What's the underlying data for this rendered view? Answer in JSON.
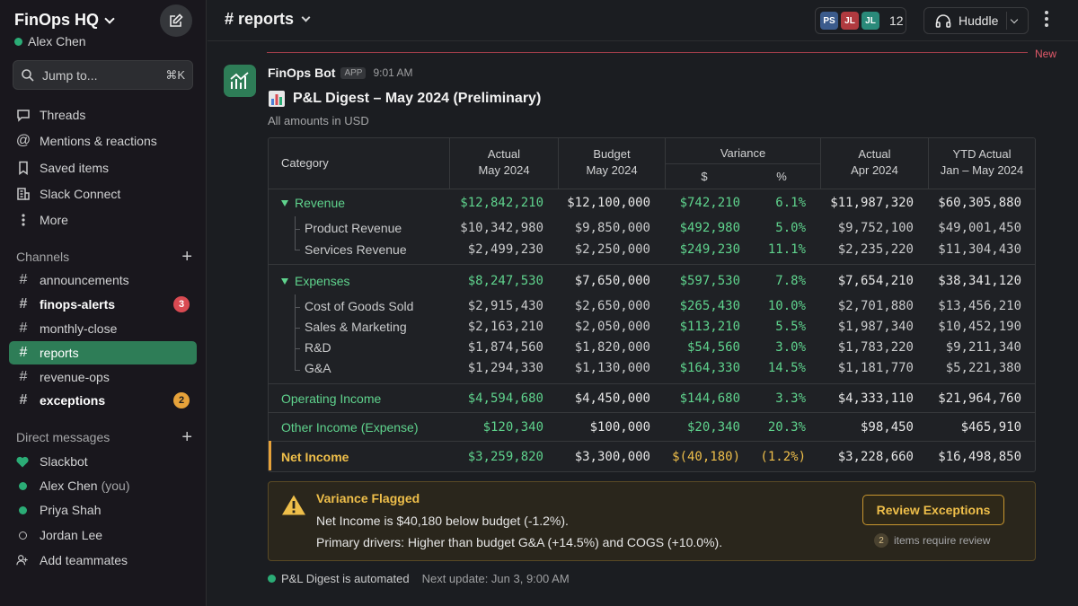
{
  "workspace": {
    "name": "FinOps HQ",
    "user": "Alex Chen"
  },
  "jump": {
    "label": "Jump to...",
    "shortcut": "⌘K"
  },
  "nav": {
    "threads": "Threads",
    "mentions": "Mentions & reactions",
    "saved": "Saved items",
    "connect": "Slack Connect",
    "more": "More"
  },
  "channels": {
    "heading": "Channels",
    "items": [
      {
        "name": "announcements"
      },
      {
        "name": "finops-alerts",
        "badge": "3"
      },
      {
        "name": "monthly-close"
      },
      {
        "name": "reports"
      },
      {
        "name": "revenue-ops"
      },
      {
        "name": "exceptions",
        "badge": "2"
      }
    ]
  },
  "dms": {
    "heading": "Direct messages",
    "items": [
      {
        "name": "Slackbot"
      },
      {
        "name": "Alex Chen",
        "suffix": "(you)"
      },
      {
        "name": "Priya Shah"
      },
      {
        "name": "Jordan Lee"
      }
    ],
    "add": "Add teammates"
  },
  "header": {
    "channel": "# reports",
    "avatars": [
      {
        "initials": "PS",
        "color": "#3b5b8c"
      },
      {
        "initials": "JL",
        "color": "#b03a3f"
      },
      {
        "initials": "JL",
        "color": "#2a8a7a"
      }
    ],
    "member_count": "12",
    "huddle": "Huddle"
  },
  "new_label": "New",
  "message": {
    "bot": "FinOps Bot",
    "tag": "APP",
    "time": "9:01 AM",
    "title": "P&L Digest – May 2024 (Preliminary)",
    "subtitle": "All amounts in USD"
  },
  "table": {
    "headers": {
      "category": "Category",
      "actual_1": "Actual",
      "actual_2": "May 2024",
      "budget_1": "Budget",
      "budget_2": "May 2024",
      "variance": "Variance",
      "var_dollar": "$",
      "var_pct": "%",
      "apr_1": "Actual",
      "apr_2": "Apr 2024",
      "ytd_1": "YTD Actual",
      "ytd_2": "Jan – May 2024"
    },
    "rows": [
      {
        "label": "Revenue",
        "c": [
          "$12,842,210",
          "$12,100,000",
          "$742,210",
          "6.1%",
          "$11,987,320",
          "$60,305,880"
        ]
      },
      {
        "label": "Product Revenue",
        "c": [
          "$10,342,980",
          "$9,850,000",
          "$492,980",
          "5.0%",
          "$9,752,100",
          "$49,001,450"
        ]
      },
      {
        "label": "Services Revenue",
        "c": [
          "$2,499,230",
          "$2,250,000",
          "$249,230",
          "11.1%",
          "$2,235,220",
          "$11,304,430"
        ]
      },
      {
        "label": "Expenses",
        "c": [
          "$8,247,530",
          "$7,650,000",
          "$597,530",
          "7.8%",
          "$7,654,210",
          "$38,341,120"
        ]
      },
      {
        "label": "Cost of Goods Sold",
        "c": [
          "$2,915,430",
          "$2,650,000",
          "$265,430",
          "10.0%",
          "$2,701,880",
          "$13,456,210"
        ]
      },
      {
        "label": "Sales & Marketing",
        "c": [
          "$2,163,210",
          "$2,050,000",
          "$113,210",
          "5.5%",
          "$1,987,340",
          "$10,452,190"
        ]
      },
      {
        "label": "R&D",
        "c": [
          "$1,874,560",
          "$1,820,000",
          "$54,560",
          "3.0%",
          "$1,783,220",
          "$9,211,340"
        ]
      },
      {
        "label": "G&A",
        "c": [
          "$1,294,330",
          "$1,130,000",
          "$164,330",
          "14.5%",
          "$1,181,770",
          "$5,221,380"
        ]
      },
      {
        "label": "Operating Income",
        "c": [
          "$4,594,680",
          "$4,450,000",
          "$144,680",
          "3.3%",
          "$4,333,110",
          "$21,964,760"
        ]
      },
      {
        "label": "Other Income (Expense)",
        "c": [
          "$120,340",
          "$100,000",
          "$20,340",
          "20.3%",
          "$98,450",
          "$465,910"
        ]
      },
      {
        "label": "Net Income",
        "c": [
          "$3,259,820",
          "$3,300,000",
          "$(40,180)",
          "(1.2%)",
          "$3,228,660",
          "$16,498,850"
        ]
      }
    ]
  },
  "alert": {
    "title": "Variance Flagged",
    "line1": "Net Income is $40,180 below budget (-1.2%).",
    "line2": "Primary drivers: Higher than budget G&A (+14.5%) and COGS (+10.0%).",
    "button": "Review Exceptions",
    "count": "2",
    "note": "items require review"
  },
  "footer": {
    "status": "P&L Digest is automated",
    "next": "Next update: Jun 3, 9:00 AM"
  },
  "colors": {
    "accent_green": "#2e7d57",
    "positive": "#5fd38d",
    "warning": "#efbf4a",
    "danger": "#d94a52"
  }
}
